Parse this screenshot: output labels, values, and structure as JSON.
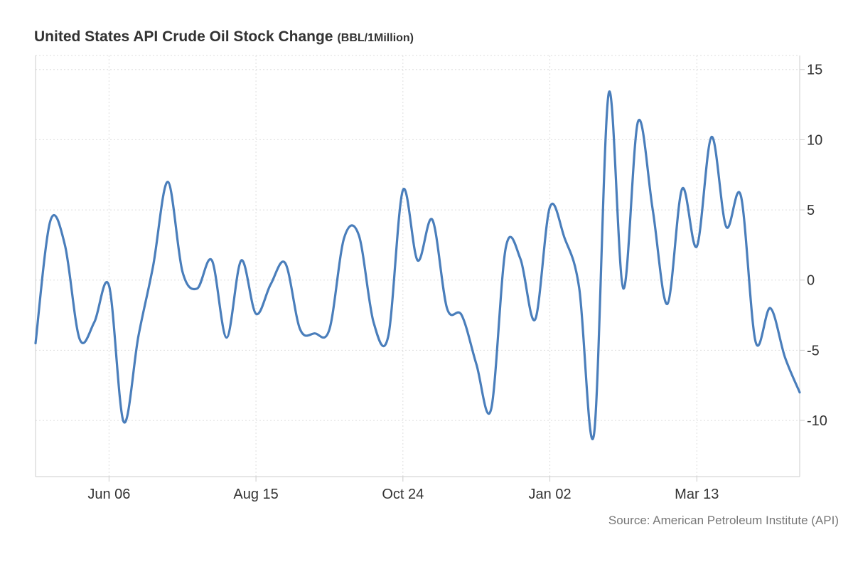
{
  "header": {
    "title": "United States API Crude Oil Stock Change",
    "unit": "(BBL/1Million)"
  },
  "footer": {
    "source": "Source: American Petroleum Institute (API)"
  },
  "colors": {
    "line": "#4a7ebb",
    "grid": "#dddddd",
    "axis": "#cccccc",
    "text": "#333333"
  },
  "chart_data": {
    "type": "line",
    "title": "United States API Crude Oil Stock Change",
    "unit": "(BBL/1Million)",
    "xlabel": "",
    "ylabel": "",
    "ylim": [
      -14,
      16
    ],
    "y_ticks": [
      15,
      10,
      5,
      0,
      -5,
      -10
    ],
    "y_tick_labels": [
      "15",
      "10",
      "5",
      "0",
      "-5",
      "-10"
    ],
    "x_tick_labels": [
      "Jun 06",
      "Aug 15",
      "Oct 24",
      "Jan 02",
      "Mar 13"
    ],
    "x_tick_positions": [
      5,
      15,
      25,
      35,
      45
    ],
    "grid": true,
    "y_axis_position": "right",
    "series": [
      {
        "x": [
          0,
          1,
          2,
          3,
          4,
          5,
          6,
          7,
          8,
          9,
          10,
          11,
          12,
          13,
          14,
          15,
          16,
          17,
          18,
          19,
          20,
          21,
          22,
          23,
          24,
          25,
          26,
          27,
          28,
          29,
          30,
          31,
          32,
          33,
          34,
          35,
          36,
          37,
          38,
          39,
          40,
          41,
          42,
          43,
          44,
          45,
          46,
          47,
          48,
          49,
          50,
          51,
          52
        ],
        "values": [
          -4.5,
          4.2,
          2.5,
          -4.2,
          -3.0,
          -0.4,
          -10.1,
          -4.0,
          1.0,
          7.0,
          0.6,
          -0.6,
          1.4,
          -4.1,
          1.4,
          -2.4,
          -0.3,
          1.2,
          -3.5,
          -3.8,
          -3.5,
          3.0,
          3.2,
          -3.0,
          -4.0,
          6.4,
          1.4,
          4.3,
          -2.0,
          -2.5,
          -6.0,
          -9.2,
          2.3,
          1.5,
          -2.8,
          5.2,
          3.0,
          -0.6,
          -11.0,
          13.3,
          -0.6,
          11.3,
          5.0,
          -1.7,
          6.5,
          2.4,
          10.2,
          3.8,
          6.0,
          -4.4,
          -2.0,
          -5.5,
          -8.0
        ]
      }
    ]
  }
}
